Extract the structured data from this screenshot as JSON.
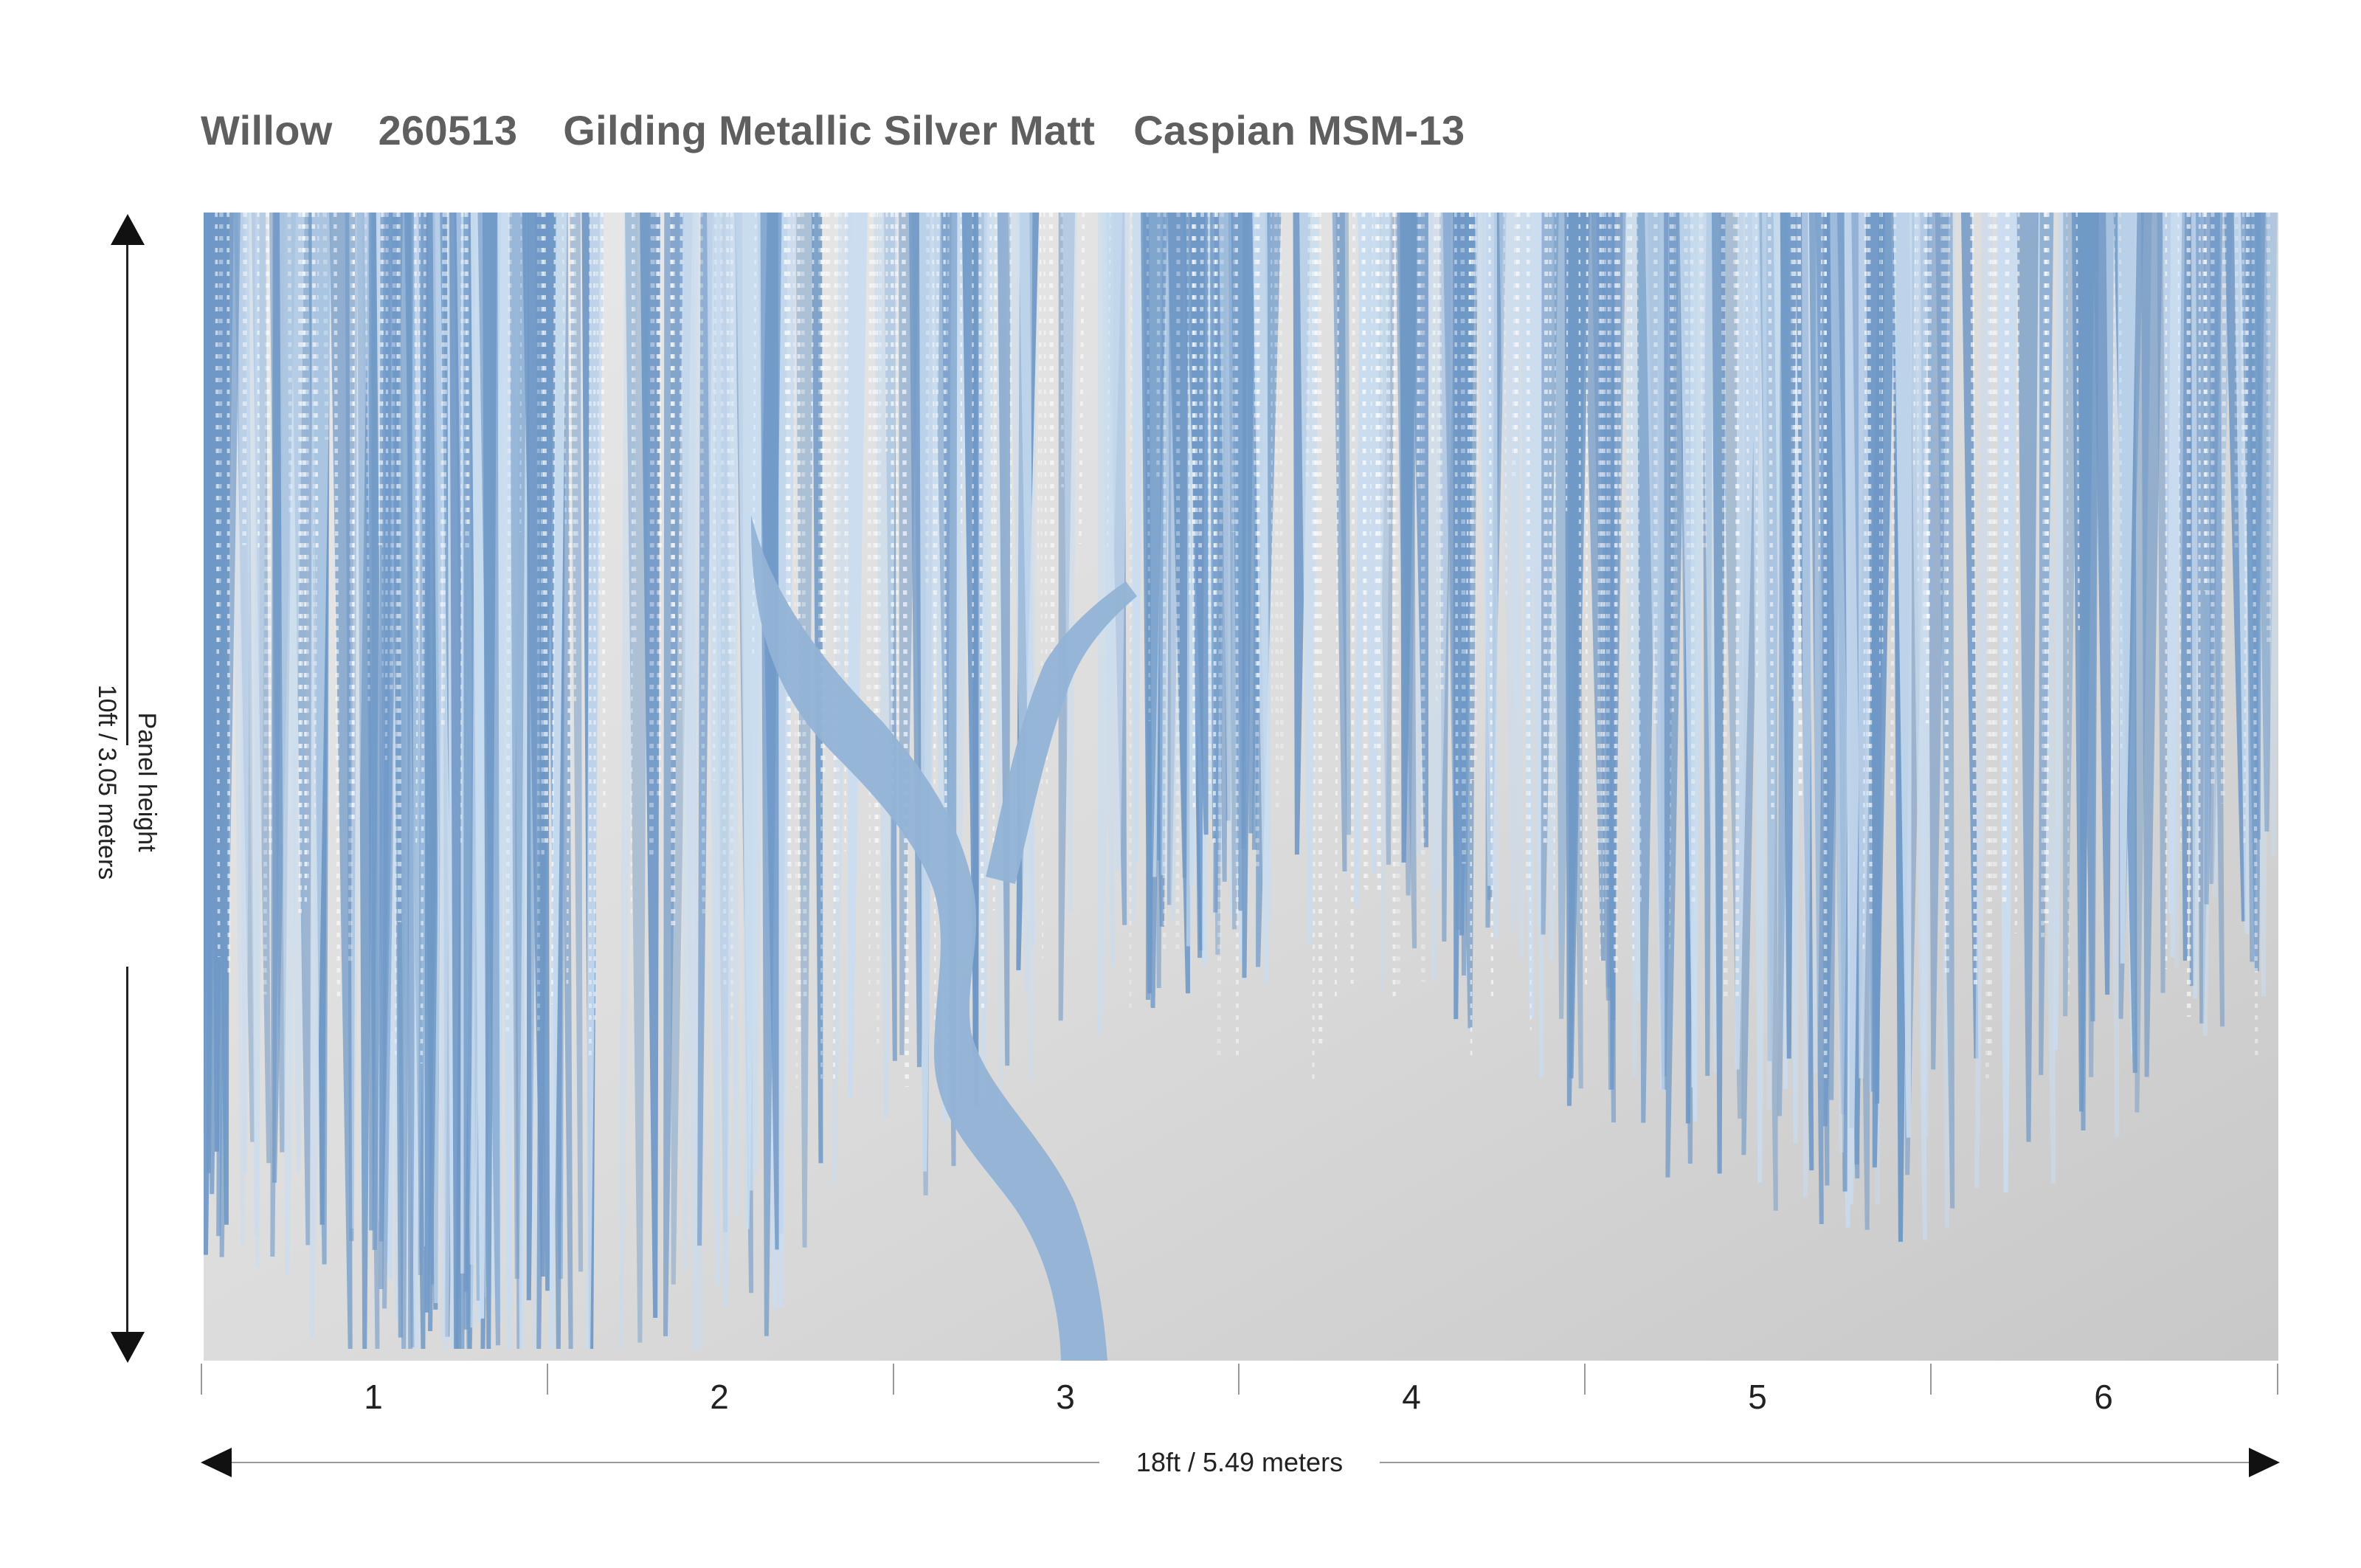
{
  "header": {
    "pattern_name": "Willow",
    "code": "260513",
    "finish": "Gilding Metallic Silver Matt",
    "colorway": "Caspian MSM-13"
  },
  "dimensions": {
    "height_label_line1": "Panel height",
    "height_label_line2": "10ft / 3.05 meters",
    "width_label": "18ft / 5.49 meters"
  },
  "panels": [
    "1",
    "2",
    "3",
    "4",
    "5",
    "6"
  ],
  "colors": {
    "willow_blue": "#6f98c6",
    "willow_light": "#c9dcef",
    "silver_ground": "#d6d6d6",
    "trunk": "#8fb0d4"
  }
}
